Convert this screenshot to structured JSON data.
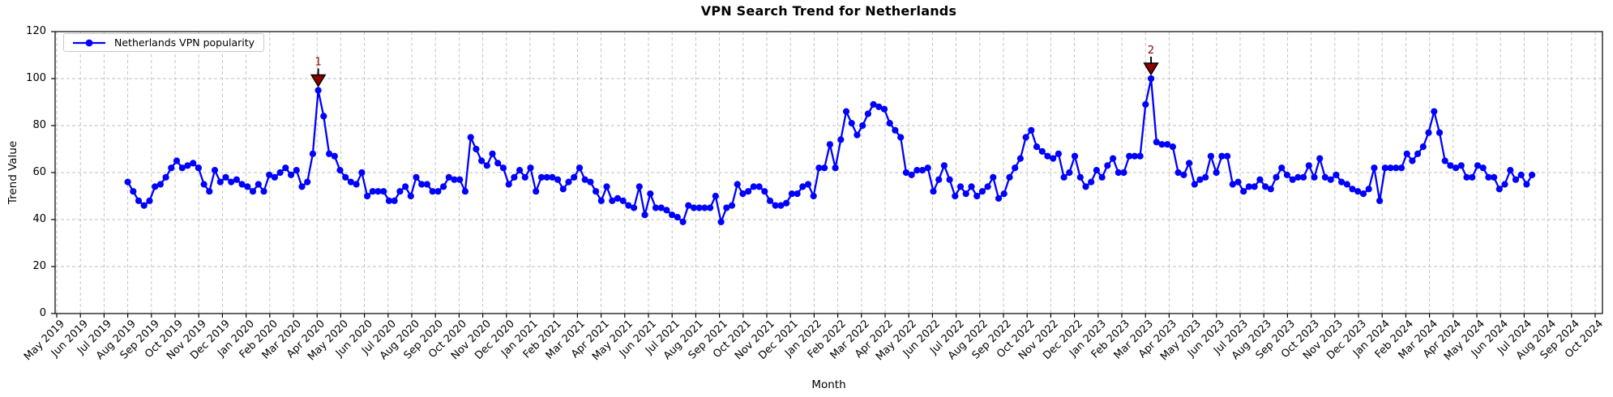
{
  "figure": {
    "title": "VPN Search Trend for Netherlands",
    "xlabel": "Month",
    "ylabel": "Trend Value",
    "legend": {
      "label": "Netherlands VPN popularity"
    }
  },
  "chart_data": {
    "type": "line",
    "title": "VPN Search Trend for Netherlands",
    "xlabel": "Month",
    "ylabel": "Trend Value",
    "ylim": [
      0,
      120
    ],
    "ytick_labels": [
      "0",
      "20",
      "40",
      "60",
      "80",
      "100",
      "120"
    ],
    "grid": true,
    "legend_position": "upper left",
    "x_tick_labels": [
      "May 2019",
      "Jun 2019",
      "Jul 2019",
      "Aug 2019",
      "Sep 2019",
      "Oct 2019",
      "Nov 2019",
      "Dec 2019",
      "Jan 2020",
      "Feb 2020",
      "Mar 2020",
      "Apr 2020",
      "May 2020",
      "Jun 2020",
      "Jul 2020",
      "Aug 2020",
      "Sep 2020",
      "Oct 2020",
      "Nov 2020",
      "Dec 2020",
      "Jan 2021",
      "Feb 2021",
      "Mar 2021",
      "Apr 2021",
      "May 2021",
      "Jun 2021",
      "Jul 2021",
      "Aug 2021",
      "Sep 2021",
      "Oct 2021",
      "Nov 2021",
      "Dec 2021",
      "Jan 2022",
      "Feb 2022",
      "Mar 2022",
      "Apr 2022",
      "May 2022",
      "Jun 2022",
      "Jul 2022",
      "Aug 2022",
      "Sep 2022",
      "Oct 2022",
      "Nov 2022",
      "Dec 2022",
      "Jan 2023",
      "Feb 2023",
      "Mar 2023",
      "Apr 2023",
      "May 2023",
      "Jun 2023",
      "Jul 2023",
      "Aug 2023",
      "Sep 2023",
      "Oct 2023",
      "Nov 2023",
      "Dec 2023",
      "Jan 2024",
      "Feb 2024",
      "Mar 2024",
      "Apr 2024",
      "May 2024",
      "Jun 2024",
      "Jul 2024",
      "Aug 2024",
      "Sep 2024",
      "Oct 2024"
    ],
    "series": [
      {
        "name": "Netherlands VPN popularity",
        "color": "#0000ff",
        "frequency": "weekly",
        "start": "Aug 2019",
        "end": "Jul 2024",
        "values": [
          56,
          52,
          48,
          46,
          48,
          54,
          55,
          58,
          62,
          65,
          62,
          63,
          64,
          62,
          55,
          52,
          61,
          56,
          58,
          56,
          57,
          55,
          54,
          52,
          55,
          52,
          59,
          58,
          60,
          62,
          59,
          61,
          54,
          56,
          68,
          95,
          84,
          68,
          67,
          61,
          58,
          56,
          55,
          60,
          50,
          52,
          52,
          52,
          48,
          48,
          52,
          54,
          50,
          58,
          55,
          55,
          52,
          52,
          54,
          58,
          57,
          57,
          52,
          75,
          70,
          65,
          63,
          68,
          64,
          62,
          55,
          58,
          61,
          58,
          62,
          52,
          58,
          58,
          58,
          57,
          53,
          56,
          58,
          62,
          57,
          56,
          52,
          48,
          54,
          48,
          49,
          48,
          46,
          45,
          54,
          42,
          51,
          45,
          45,
          44,
          42,
          41,
          39,
          46,
          45,
          45,
          45,
          45,
          50,
          39,
          45,
          46,
          55,
          51,
          52,
          54,
          54,
          52,
          48,
          46,
          46,
          47,
          51,
          51,
          54,
          55,
          50,
          62,
          62,
          72,
          62,
          74,
          86,
          81,
          76,
          80,
          85,
          89,
          88,
          87,
          81,
          78,
          75,
          60,
          59,
          61,
          61,
          62,
          52,
          57,
          63,
          57,
          50,
          54,
          51,
          54,
          50,
          52,
          54,
          58,
          49,
          51,
          58,
          62,
          66,
          75,
          78,
          71,
          69,
          67,
          66,
          68,
          58,
          60,
          67,
          58,
          54,
          56,
          61,
          58,
          63,
          66,
          60,
          60,
          67,
          67,
          67,
          89,
          100,
          73,
          72,
          72,
          71,
          60,
          59,
          64,
          55,
          57,
          58,
          67,
          60,
          67,
          67,
          55,
          56,
          52,
          54,
          54,
          57,
          54,
          53,
          58,
          62,
          59,
          57,
          58,
          58,
          63,
          58,
          66,
          58,
          57,
          59,
          56,
          55,
          53,
          52,
          51,
          53,
          62,
          48,
          62,
          62,
          62,
          62,
          68,
          65,
          68,
          71,
          77,
          86,
          77,
          65,
          63,
          62,
          63,
          58,
          58,
          63,
          62,
          58,
          58,
          53,
          55,
          61,
          57,
          59,
          55,
          59
        ]
      }
    ],
    "annotations": [
      {
        "label": "1",
        "week_index": 35,
        "value": 95,
        "near_tick": "Apr 2020",
        "marker": "down-triangle",
        "color": "#8b0000"
      },
      {
        "label": "2",
        "week_index": 188,
        "value": 100,
        "near_tick": "Apr 2023",
        "marker": "down-triangle",
        "color": "#8b0000"
      }
    ]
  },
  "colors": {
    "line": "#0000ff",
    "annotation": "#8b0000",
    "grid": "#bfbfbf",
    "spine": "#000000",
    "background": "#ffffff"
  }
}
